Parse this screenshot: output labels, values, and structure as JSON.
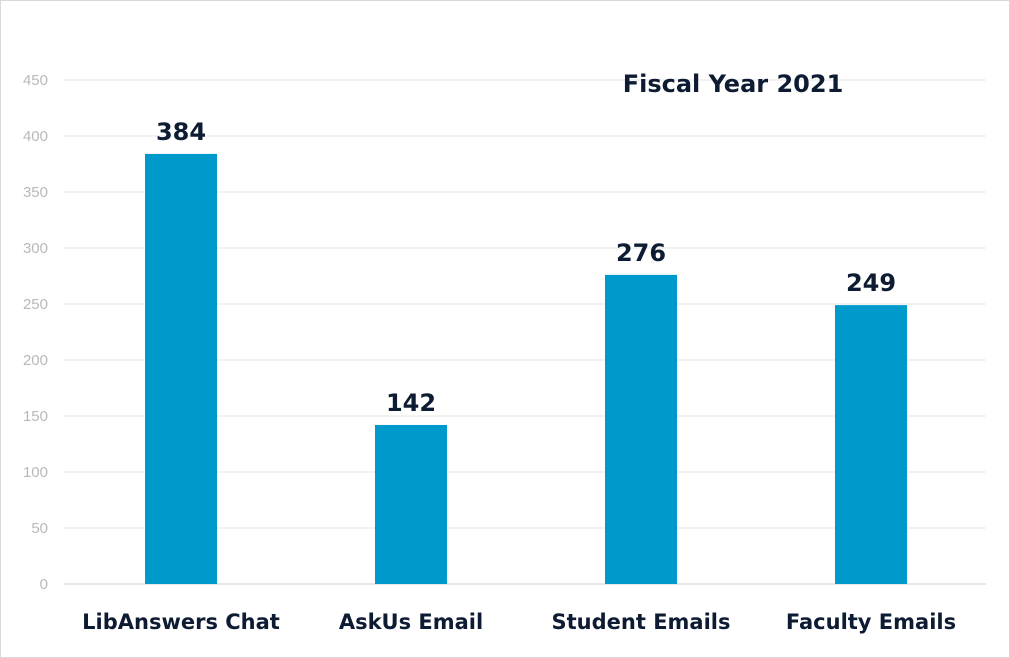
{
  "chart_data": {
    "type": "bar",
    "title": "Fiscal Year 2021",
    "xlabel": "",
    "ylabel": "",
    "categories": [
      "LibAnswers Chat",
      "AskUs Email",
      "Student Emails",
      "Faculty Emails"
    ],
    "values": [
      384,
      142,
      276,
      249
    ],
    "data_labels": [
      "384",
      "142",
      "276",
      "249"
    ],
    "ylim": [
      0,
      450
    ],
    "yticks": [
      0,
      50,
      100,
      150,
      200,
      250,
      300,
      350,
      400,
      450
    ],
    "ytick_labels": [
      "0",
      "50",
      "100",
      "150",
      "200",
      "250",
      "300",
      "350",
      "400",
      "450"
    ],
    "grid": true,
    "legend": "none",
    "colors": {
      "bar": "#0099cc",
      "text": "#0d1b33",
      "tick_text": "#b8b8b8",
      "grid": "#e6e6e6"
    }
  }
}
